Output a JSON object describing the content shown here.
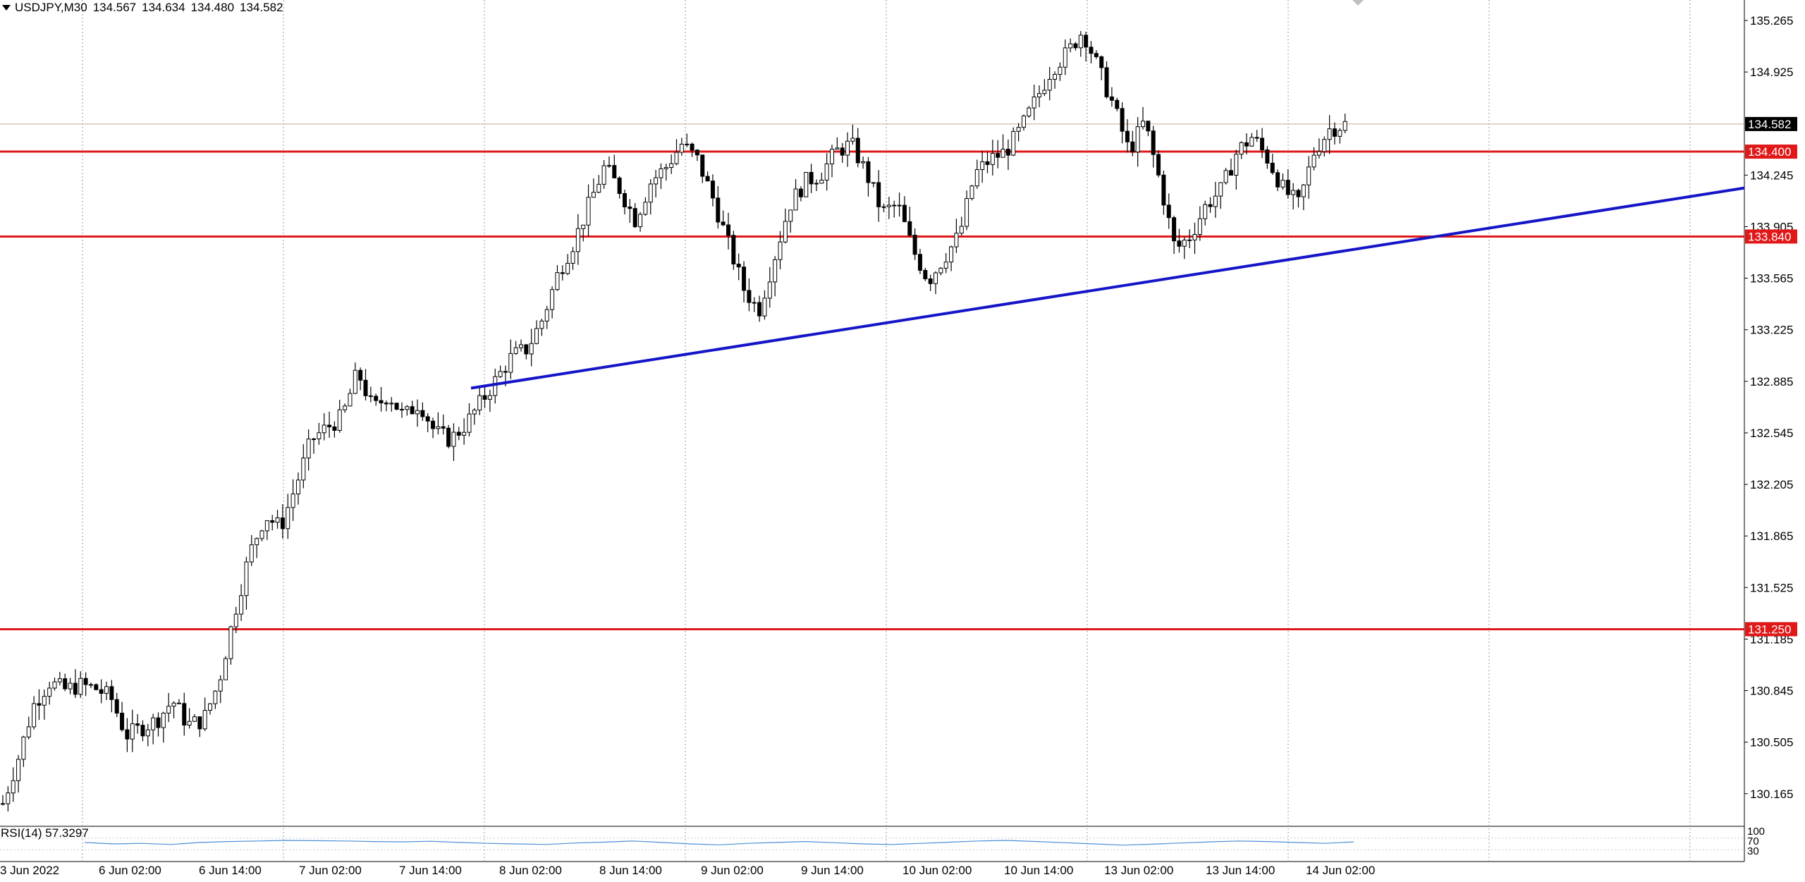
{
  "header": {
    "symbol": "USDJPY,M30",
    "open": "134.567",
    "high": "134.634",
    "low": "134.480",
    "close": "134.582"
  },
  "rsi": {
    "label": "RSI(14) 57.3297",
    "scale_labels": [
      "100",
      "70",
      "30"
    ],
    "series_color": "#4b8fd6"
  },
  "chart_data": {
    "type": "candlestick",
    "symbol": "USDJPY",
    "timeframe": "M30",
    "ylim": [
      129.95,
      135.4
    ],
    "y_ticks": [
      "135.265",
      "134.925",
      "134.245",
      "133.905",
      "133.565",
      "133.225",
      "132.885",
      "132.545",
      "132.205",
      "131.865",
      "131.525",
      "131.185",
      "130.845",
      "130.505",
      "130.165"
    ],
    "x_ticks": [
      "3 Jun 2022",
      "6 Jun 02:00",
      "6 Jun 14:00",
      "7 Jun 02:00",
      "7 Jun 14:00",
      "8 Jun 02:00",
      "8 Jun 14:00",
      "9 Jun 02:00",
      "9 Jun 14:00",
      "10 Jun 02:00",
      "10 Jun 14:00",
      "13 Jun 02:00",
      "13 Jun 14:00",
      "14 Jun 02:00"
    ],
    "current_price": "134.582",
    "horizontal_levels": [
      {
        "value": 134.4,
        "label": "134.400",
        "color": "#e01818"
      },
      {
        "value": 133.84,
        "label": "133.840",
        "color": "#e01818"
      },
      {
        "value": 131.25,
        "label": "131.250",
        "color": "#e01818"
      }
    ],
    "trendline": {
      "color": "#1515c8",
      "from_price": 132.84,
      "to_price": 134.16
    },
    "price_path": [
      130.1,
      130.4,
      130.75,
      130.9,
      130.85,
      130.88,
      130.86,
      130.8,
      130.55,
      130.6,
      130.65,
      130.78,
      130.62,
      130.65,
      130.9,
      131.35,
      131.75,
      132.0,
      131.92,
      132.2,
      132.5,
      132.58,
      132.65,
      132.95,
      132.7,
      132.8,
      132.65,
      132.75,
      132.55,
      132.5,
      132.6,
      132.75,
      132.9,
      133.05,
      133.1,
      133.3,
      133.6,
      133.8,
      134.05,
      134.3,
      134.15,
      133.95,
      134.2,
      134.3,
      134.45,
      134.35,
      134.1,
      133.8,
      133.5,
      133.35,
      133.7,
      134.05,
      134.2,
      134.25,
      134.4,
      134.45,
      134.25,
      134.0,
      134.05,
      133.75,
      133.55,
      133.7,
      133.85,
      134.25,
      134.35,
      134.4,
      134.55,
      134.75,
      134.95,
      135.05,
      135.2,
      134.95,
      134.7,
      134.4,
      134.6,
      134.2,
      133.75,
      133.85,
      134.05,
      134.15,
      134.4,
      134.5,
      134.35,
      134.15,
      134.05,
      134.4,
      134.55,
      134.58
    ],
    "rsi_values": [
      55,
      50,
      52,
      48,
      55,
      58,
      60,
      62,
      61,
      60,
      58,
      57,
      59,
      55,
      52,
      50,
      48,
      53,
      56,
      60,
      55,
      50,
      47,
      52,
      55,
      58,
      54,
      50,
      48,
      52,
      56,
      60,
      62,
      58,
      54,
      50,
      46,
      49,
      53,
      57,
      60,
      58,
      55,
      52,
      57
    ]
  }
}
